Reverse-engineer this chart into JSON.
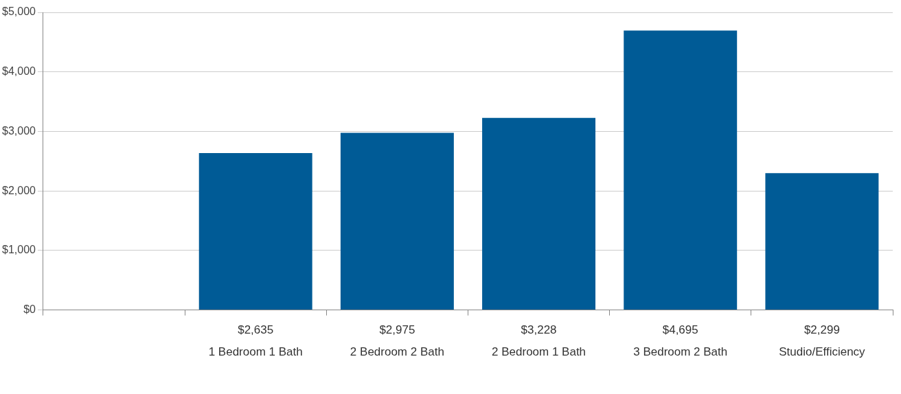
{
  "chart_data": {
    "type": "bar",
    "categories": [
      null,
      "1 Bedroom 1 Bath",
      "2 Bedroom 2 Bath",
      "2 Bedroom 1 Bath",
      "3 Bedroom 2 Bath",
      "Studio/Efficiency"
    ],
    "values": [
      null,
      2635,
      2975,
      3228,
      4695,
      2299
    ],
    "value_labels": [
      null,
      "$2,635",
      "$2,975",
      "$3,228",
      "$4,695",
      "$2,299"
    ],
    "color": "#005b96",
    "ylim": [
      0,
      5000
    ],
    "yticks": [
      {
        "value": 0,
        "label": "$0"
      },
      {
        "value": 1000,
        "label": "$1,000"
      },
      {
        "value": 2000,
        "label": "$2,000"
      },
      {
        "value": 3000,
        "label": "$3,000"
      },
      {
        "value": 4000,
        "label": "$4,000"
      },
      {
        "value": 5000,
        "label": "$5,000"
      }
    ],
    "grid": "y",
    "legend": false
  }
}
